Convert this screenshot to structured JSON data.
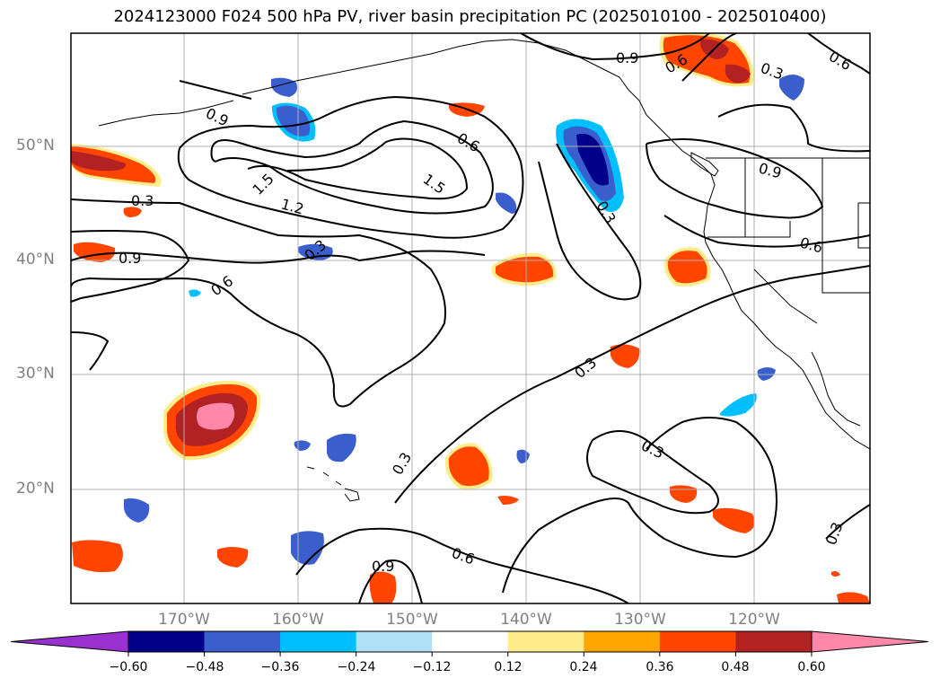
{
  "title": "2024123000 F024 500 hPa PV, river basin precipitation PC (2025010100 - 2025010400)",
  "latitude_labels": [
    "50°N",
    "40°N",
    "30°N",
    "20°N"
  ],
  "longitude_labels": [
    "170°W",
    "160°W",
    "150°W",
    "140°W",
    "130°W",
    "120°W"
  ],
  "contour_labels": [
    "0.9",
    "1.5",
    "1.2",
    "0.6",
    "1.5",
    "0.3",
    "0.9",
    "0.6",
    "0.3",
    "0.3",
    "0.9",
    "0.6",
    "0.3",
    "0.3",
    "0.6",
    "0.9",
    "0.3",
    "0.9",
    "0.6",
    "0.3",
    "0.6",
    "0.3"
  ],
  "colorbar": {
    "ticks": [
      "−0.60",
      "−0.48",
      "−0.36",
      "−0.24",
      "−0.12",
      "0.12",
      "0.24",
      "0.36",
      "0.48",
      "0.60"
    ],
    "colors": [
      "#9b30d0",
      "#00008b",
      "#3a5fcd",
      "#00bfff",
      "#afe0f8",
      "#ffffff",
      "#ffec8b",
      "#ffa500",
      "#ff4500",
      "#b22222",
      "#ff88aa"
    ]
  }
}
